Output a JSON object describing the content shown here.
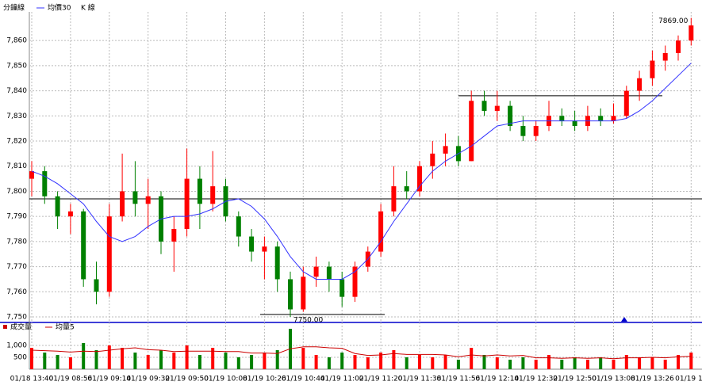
{
  "chart_data": {
    "type": "candlestick",
    "legend": {
      "title": "分鐘線",
      "ma": "均價30",
      "k": "K 線"
    },
    "categories": [
      "01/18 13:40",
      null,
      null,
      "01/19 08:56",
      null,
      null,
      "01/19 09:14",
      null,
      null,
      "01/19 09:32",
      null,
      null,
      "01/19 09:50",
      null,
      null,
      "01/19 10:08",
      null,
      null,
      "01/19 10:26",
      null,
      null,
      "01/19 10:44",
      null,
      null,
      "01/19 11:02",
      null,
      null,
      "01/19 11:20",
      null,
      null,
      "01/19 11:38",
      null,
      null,
      "01/19 11:56",
      null,
      null,
      "01/19 12:14",
      null,
      null,
      "01/19 12:32",
      null,
      null,
      "01/19 12:50",
      null,
      null,
      "01/19 13:08",
      null,
      null,
      "01/19 13:26",
      null,
      null,
      "01/19 13"
    ],
    "open": [
      7805,
      7808,
      7798,
      7790,
      7792,
      7765,
      7760,
      7790,
      7800,
      7795,
      7798,
      7780,
      7785,
      7805,
      7795,
      7802,
      7790,
      7782,
      7776,
      7778,
      7765,
      7753,
      7766,
      7770,
      7765,
      7758,
      7770,
      7776,
      7792,
      7802,
      7800,
      7810,
      7815,
      7818,
      7812,
      7836,
      7832,
      7834,
      7826,
      7822,
      7826,
      7830,
      7828,
      7826,
      7830,
      7828,
      7830,
      7840,
      7845,
      7852,
      7855,
      7860
    ],
    "high": [
      7812,
      7810,
      7800,
      7795,
      7793,
      7772,
      7795,
      7815,
      7812,
      7805,
      7800,
      7790,
      7817,
      7810,
      7816,
      7805,
      7792,
      7785,
      7782,
      7780,
      7768,
      7770,
      7774,
      7772,
      7768,
      7772,
      7778,
      7795,
      7810,
      7808,
      7812,
      7820,
      7823,
      7822,
      7840,
      7840,
      7840,
      7836,
      7830,
      7828,
      7836,
      7833,
      7832,
      7834,
      7833,
      7835,
      7842,
      7848,
      7856,
      7858,
      7862,
      7869
    ],
    "low": [
      7798,
      7795,
      7785,
      7783,
      7762,
      7755,
      7758,
      7788,
      7790,
      7785,
      7775,
      7768,
      7782,
      7785,
      7792,
      7788,
      7778,
      7772,
      7765,
      7760,
      7750,
      7752,
      7762,
      7760,
      7754,
      7756,
      7768,
      7774,
      7790,
      7797,
      7798,
      7805,
      7810,
      7810,
      7812,
      7830,
      7828,
      7824,
      7820,
      7820,
      7824,
      7826,
      7824,
      7824,
      7826,
      7827,
      7829,
      7836,
      7842,
      7848,
      7852,
      7858
    ],
    "close": [
      7808,
      7798,
      7790,
      7792,
      7765,
      7760,
      7790,
      7800,
      7795,
      7798,
      7780,
      7785,
      7805,
      7795,
      7802,
      7790,
      7782,
      7776,
      7778,
      7765,
      7753,
      7766,
      7770,
      7765,
      7758,
      7770,
      7776,
      7792,
      7802,
      7800,
      7810,
      7815,
      7818,
      7812,
      7836,
      7832,
      7834,
      7826,
      7822,
      7826,
      7830,
      7828,
      7826,
      7830,
      7828,
      7830,
      7840,
      7845,
      7852,
      7855,
      7860,
      7866
    ],
    "ma30": [
      7808,
      7806,
      7803,
      7799,
      7795,
      7788,
      7782,
      7780,
      7782,
      7786,
      7789,
      7790,
      7790,
      7791,
      7793,
      7796,
      7797,
      7794,
      7789,
      7782,
      7774,
      7768,
      7765,
      7765,
      7765,
      7768,
      7773,
      7780,
      7788,
      7795,
      7802,
      7808,
      7812,
      7815,
      7818,
      7822,
      7826,
      7827,
      7828,
      7828,
      7828,
      7828,
      7828,
      7828,
      7828,
      7828,
      7829,
      7832,
      7836,
      7841,
      7846,
      7851
    ],
    "ylim": [
      7747.8,
      7871.4
    ],
    "yticks": [
      {
        "value": 7750,
        "label": "7,750"
      },
      {
        "value": 7760,
        "label": "7,760"
      },
      {
        "value": 7770,
        "label": "7,770"
      },
      {
        "value": 7780,
        "label": "7,780"
      },
      {
        "value": 7790,
        "label": "7,790"
      },
      {
        "value": 7800,
        "label": "7,800"
      },
      {
        "value": 7810,
        "label": "7,810"
      },
      {
        "value": 7820,
        "label": "7,820"
      },
      {
        "value": 7830,
        "label": "7,830"
      },
      {
        "value": 7840,
        "label": "7,840"
      },
      {
        "value": 7850,
        "label": "7,850"
      },
      {
        "value": 7860,
        "label": "7,860"
      }
    ],
    "reference_lines": [
      7797,
      7838,
      7751
    ],
    "max_label": "7869.00",
    "min_label": "7750.00",
    "up_color": "#ff0000",
    "down_color": "#008000",
    "ma_color": "#3333ff",
    "grid": true,
    "volume": {
      "legend": "成交量",
      "ma_legend": "均量5",
      "values": [
        900,
        700,
        600,
        500,
        1100,
        800,
        1000,
        900,
        700,
        600,
        800,
        700,
        1000,
        600,
        900,
        700,
        500,
        600,
        700,
        800,
        1700,
        900,
        600,
        500,
        700,
        600,
        500,
        700,
        800,
        500,
        600,
        500,
        600,
        400,
        900,
        600,
        500,
        400,
        500,
        400,
        600,
        400,
        500,
        400,
        500,
        400,
        600,
        500,
        500,
        400,
        600,
        700
      ],
      "ma5": [
        800,
        780,
        760,
        720,
        760,
        740,
        800,
        860,
        900,
        820,
        800,
        740,
        760,
        760,
        760,
        740,
        740,
        680,
        680,
        660,
        860,
        940,
        940,
        900,
        880,
        660,
        580,
        600,
        660,
        620,
        620,
        620,
        600,
        520,
        600,
        560,
        600,
        560,
        580,
        480,
        480,
        460,
        480,
        460,
        480,
        440,
        480,
        480,
        500,
        480,
        520,
        540
      ],
      "ylim": [
        0,
        1867
      ],
      "yticks": [
        {
          "value": 500,
          "label": "500"
        },
        {
          "value": 1000,
          "label": "1,000"
        }
      ]
    }
  }
}
